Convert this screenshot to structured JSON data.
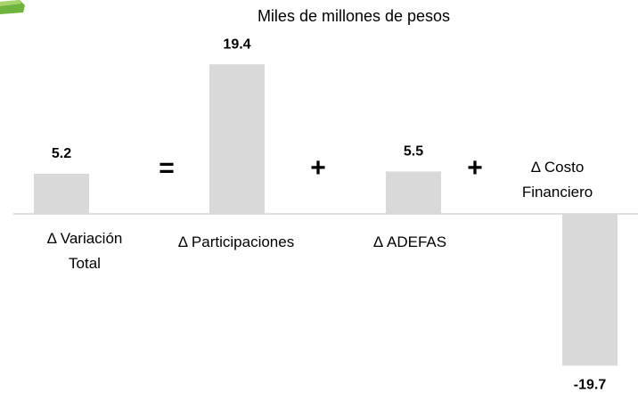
{
  "chart_data": {
    "type": "bar",
    "title": "Miles de millones de pesos",
    "categories": [
      "Δ Variación Total",
      "Δ  Participaciones",
      "Δ  ADEFAS",
      "Δ  Costo Financiero"
    ],
    "values": [
      5.2,
      19.4,
      5.5,
      -19.7
    ],
    "operators": [
      "=",
      "+",
      "+"
    ],
    "color": "#d9d9d9",
    "ylim": [
      -21,
      22
    ]
  }
}
